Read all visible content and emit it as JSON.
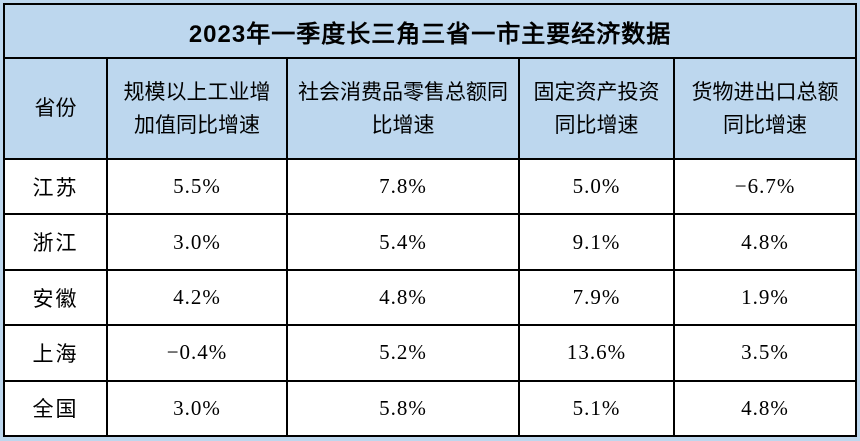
{
  "chart_data": {
    "type": "table",
    "title": "2023年一季度长三角三省一市主要经济数据",
    "columns": [
      "省份",
      "规模以上工业增加值同比增速",
      "社会消费品零售总额同比增速",
      "固定资产投资同比增速",
      "货物进出口总额同比增速"
    ],
    "rows": [
      [
        "江苏",
        "5.5%",
        "7.8%",
        "5.0%",
        "−6.7%"
      ],
      [
        "浙江",
        "3.0%",
        "5.4%",
        "9.1%",
        "4.8%"
      ],
      [
        "安徽",
        "4.2%",
        "4.8%",
        "7.9%",
        "1.9%"
      ],
      [
        "上海",
        "−0.4%",
        "5.2%",
        "13.6%",
        "3.5%"
      ],
      [
        "全国",
        "3.0%",
        "5.8%",
        "5.1%",
        "4.8%"
      ]
    ]
  },
  "colors": {
    "band_background": "#BDD7EE",
    "cell_background": "#FFFFFF",
    "border": "#000000",
    "text": "#000000"
  }
}
